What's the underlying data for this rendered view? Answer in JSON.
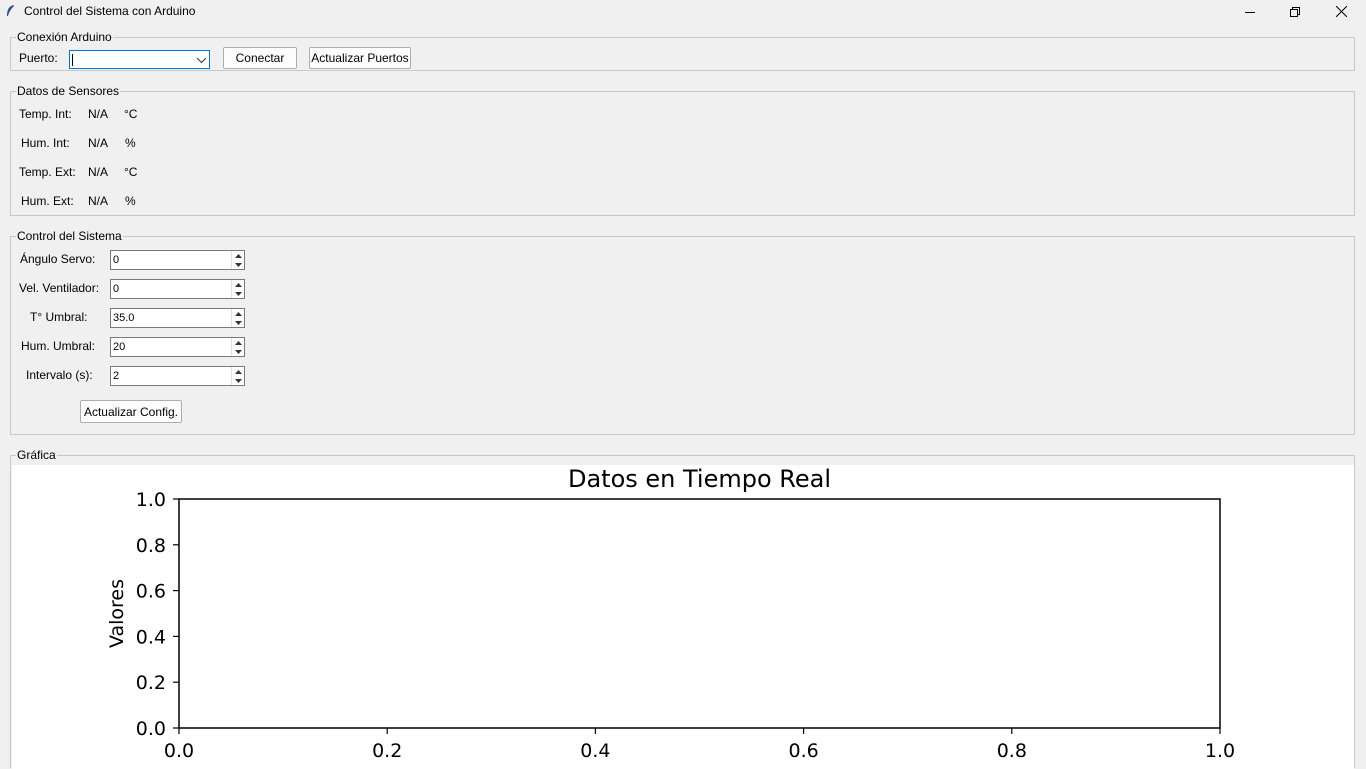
{
  "window": {
    "title": "Control del Sistema con Arduino",
    "icons": {
      "app": "feather-icon",
      "minimize": "minimize-icon",
      "maximize": "restore-icon",
      "close": "close-icon"
    }
  },
  "connection": {
    "legend": "Conexión Arduino",
    "port_label": "Puerto:",
    "port_value": "",
    "connect_label": "Conectar",
    "refresh_label": "Actualizar Puertos"
  },
  "sensors": {
    "legend": "Datos de Sensores",
    "rows": [
      {
        "label": "Temp. Int:",
        "value": "N/A",
        "unit": "°C"
      },
      {
        "label": "Hum. Int:",
        "value": "N/A",
        "unit": "%"
      },
      {
        "label": "Temp. Ext:",
        "value": "N/A",
        "unit": "°C"
      },
      {
        "label": "Hum. Ext:",
        "value": "N/A",
        "unit": "%"
      }
    ]
  },
  "control": {
    "legend": "Control del Sistema",
    "fields": [
      {
        "label": "Ángulo Servo:",
        "value": "0"
      },
      {
        "label": "Vel. Ventilador:",
        "value": "0"
      },
      {
        "label": "T° Umbral:",
        "value": "35.0"
      },
      {
        "label": "Hum. Umbral:",
        "value": "20"
      },
      {
        "label": "Intervalo (s):",
        "value": "2"
      }
    ],
    "update_label": "Actualizar Config."
  },
  "graph": {
    "legend": "Gráfica"
  },
  "chart_data": {
    "type": "line",
    "title": "Datos en Tiempo Real",
    "xlabel": "",
    "ylabel": "Valores",
    "xlim": [
      0.0,
      1.0
    ],
    "ylim": [
      0.0,
      1.0
    ],
    "xticks": [
      "0.0",
      "0.2",
      "0.4",
      "0.6",
      "0.8",
      "1.0"
    ],
    "yticks": [
      "0.0",
      "0.2",
      "0.4",
      "0.6",
      "0.8",
      "1.0"
    ],
    "series": [],
    "grid": false
  },
  "colors": {
    "focus": "#0078d7",
    "background": "#f0f0f0",
    "border": "#c8c8c8"
  }
}
